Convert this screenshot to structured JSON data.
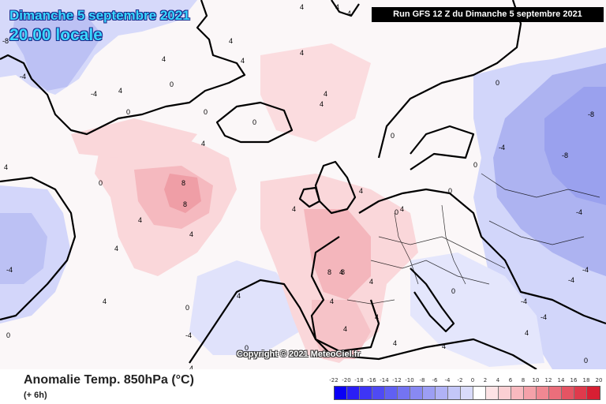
{
  "header": {
    "date_line": "Dimanche 5 septembre 2021",
    "time_line": "20.00 locale",
    "run_banner": "Run GFS 12 Z du Dimanche 5 septembre 2021"
  },
  "map": {
    "copyright": "Copyright © 2021 MeteoCiel.fr",
    "colors": {
      "ocean_neutral": "#fbf7f8",
      "warm_light": "#fde0e2",
      "warm_mid": "#f8c4c8",
      "warm_strong": "#f1a2a8",
      "cold_light": "#dfe2fb",
      "cold_mid": "#c6cbf6",
      "cold_strong": "#a8aeee",
      "coast": "#000000"
    },
    "contour_labels": [
      "4",
      "4",
      "4",
      "4",
      "4",
      "4",
      "0",
      "0",
      "4",
      "4",
      "4",
      "0",
      "0",
      "4",
      "4",
      "8",
      "8",
      "4",
      "4",
      "0",
      "0",
      "0",
      "0",
      "4",
      "4",
      "-4",
      "-8",
      "-4",
      "0",
      "0",
      "4",
      "4",
      "-4",
      "-4",
      "0",
      "4",
      "4",
      "8",
      "8",
      "4",
      "4",
      "4",
      "0",
      "0",
      "0",
      "-4",
      "-4",
      "-4",
      "-4",
      "4",
      "4",
      "4",
      "0",
      "-4",
      "-8",
      "-8",
      "-4",
      "4",
      "4",
      "4",
      "4"
    ]
  },
  "footer": {
    "title": "Anomalie Temp. 850hPa (°C)",
    "subtitle": "(+ 6h)"
  },
  "legend": {
    "labels": [
      "-22",
      "-20",
      "-18",
      "-16",
      "-14",
      "-12",
      "-10",
      "-8",
      "-6",
      "-4",
      "-2",
      "0",
      "2",
      "4",
      "6",
      "8",
      "10",
      "12",
      "14",
      "16",
      "18",
      "20"
    ],
    "colors": [
      "#0a00f5",
      "#2a1ef6",
      "#3d35f5",
      "#4f4af4",
      "#6060f3",
      "#7474f2",
      "#8889f2",
      "#9c9ef4",
      "#b0b2f6",
      "#c4c7f8",
      "#d9dbfa",
      "#ffffff",
      "#fde3e5",
      "#fbcfd3",
      "#f8b9bf",
      "#f4a1a9",
      "#f08892",
      "#eb6e7b",
      "#e55463",
      "#df3a4c",
      "#d81f33"
    ]
  }
}
